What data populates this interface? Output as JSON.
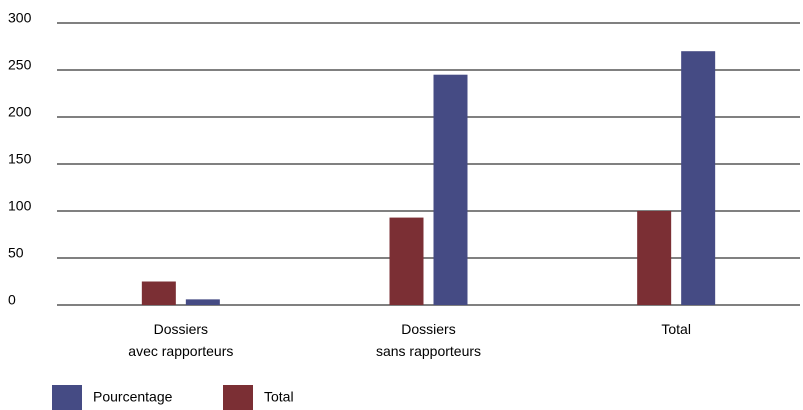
{
  "chart_data": {
    "type": "bar",
    "categories": [
      "Dossiers\navec rapporteurs",
      "Dossiers\nsans rapporteurs",
      "Total"
    ],
    "series": [
      {
        "name": "Pourcentage",
        "color": "#454b84",
        "values": [
          6,
          245,
          270
        ]
      },
      {
        "name": "Total",
        "color": "#7b2f34",
        "values": [
          25,
          93,
          100
        ]
      }
    ],
    "ylim": [
      0,
      300
    ],
    "yticks": [
      0,
      50,
      100,
      150,
      200,
      250,
      300
    ],
    "grid": true
  }
}
